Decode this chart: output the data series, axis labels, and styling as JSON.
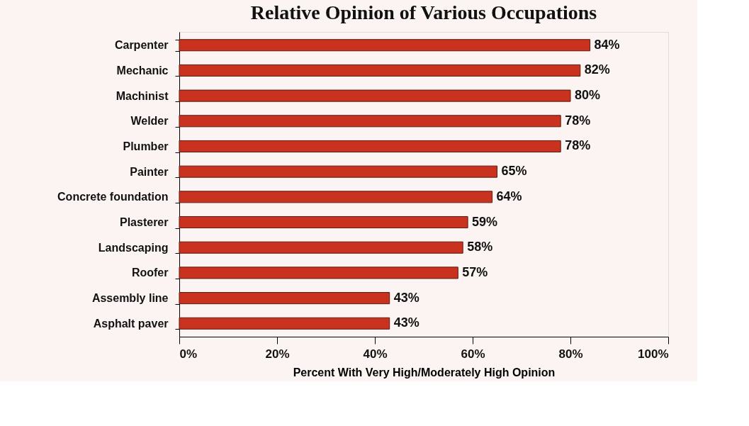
{
  "chart_data": {
    "type": "bar",
    "orientation": "horizontal",
    "title": "Relative Opinion of Various Occupations",
    "xlabel": "Percent With Very High/Moderately High Opinion",
    "categories": [
      "Carpenter",
      "Mechanic",
      "Machinist",
      "Welder",
      "Plumber",
      "Painter",
      "Concrete foundation",
      "Plasterer",
      "Landscaping",
      "Roofer",
      "Assembly line",
      "Asphalt paver"
    ],
    "values": [
      84,
      82,
      80,
      78,
      78,
      65,
      64,
      59,
      58,
      57,
      43,
      43
    ],
    "value_labels": [
      "84%",
      "82%",
      "80%",
      "78%",
      "78%",
      "65%",
      "64%",
      "59%",
      "58%",
      "57%",
      "43%",
      "43%"
    ],
    "color": "#c8321e",
    "xlim": [
      0,
      100
    ],
    "xticks": [
      {
        "value": 0,
        "label": "0%"
      },
      {
        "value": 20,
        "label": "20%"
      },
      {
        "value": 40,
        "label": "40%"
      },
      {
        "value": 60,
        "label": "60%"
      },
      {
        "value": 80,
        "label": "80%"
      },
      {
        "value": 100,
        "label": "100%"
      }
    ],
    "grid": false
  }
}
